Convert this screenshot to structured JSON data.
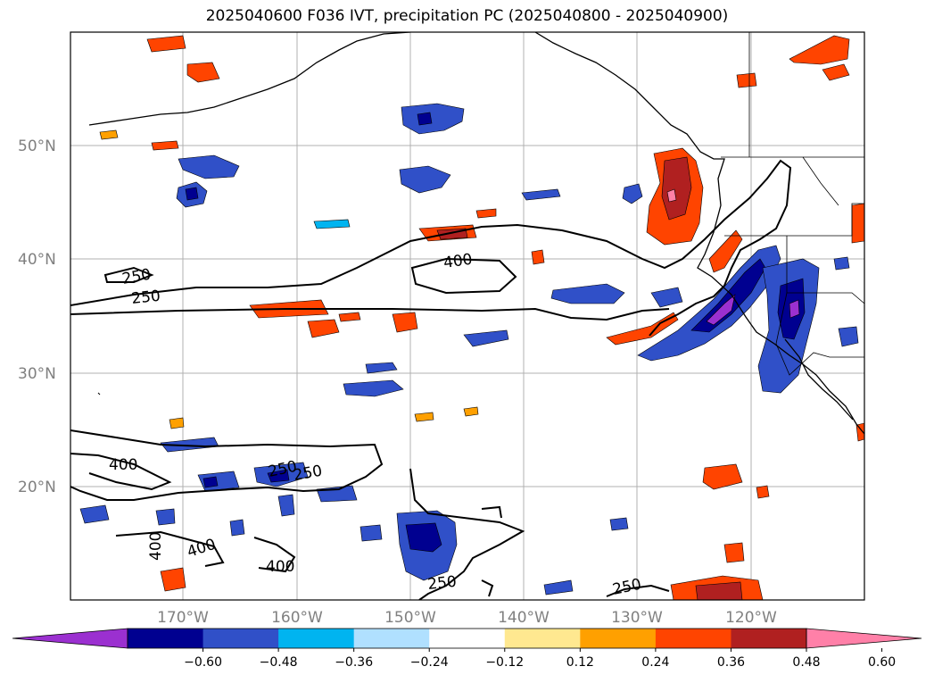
{
  "title": "2025040600 F036 IVT, precipitation PC (2025040800 - 2025040900)",
  "map": {
    "lat_labels": [
      "50°N",
      "40°N",
      "30°N",
      "20°N"
    ],
    "lon_labels": [
      "170°W",
      "160°W",
      "150°W",
      "140°W",
      "130°W",
      "120°W"
    ],
    "ivt_contour_labels": [
      "250",
      "250",
      "400",
      "400",
      "250",
      "250",
      "400",
      "400",
      "400",
      "250",
      "250"
    ]
  },
  "colorbar": {
    "colors": [
      "#9b30d0",
      "#000090",
      "#3050c8",
      "#00b4f0",
      "#b0e0ff",
      "#ffffff",
      "#ffe890",
      "#ffa000",
      "#ff4400",
      "#b02020",
      "#ff80a8"
    ],
    "tick_labels": [
      "-0.60",
      "-0.48",
      "-0.36",
      "-0.24",
      "-0.12",
      "0.12",
      "0.24",
      "0.36",
      "0.48",
      "0.60"
    ]
  }
}
